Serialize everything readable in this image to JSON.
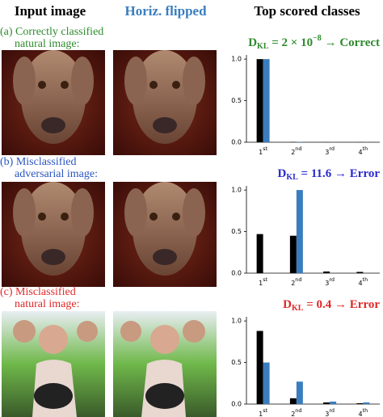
{
  "header": {
    "input": "Input image",
    "flipped": "Horiz. flipped",
    "classes": "Top scored classes"
  },
  "rows": [
    {
      "label": [
        "(a) Correctly classified",
        "natural image:"
      ],
      "color": "#2e8b2e"
    },
    {
      "label": [
        "(b) Misclassified",
        "adversarial image:"
      ],
      "color": "#2a55c0"
    },
    {
      "label": [
        "(c) Misclassified",
        "natural image:"
      ],
      "color": "#e02828"
    }
  ],
  "chart_data": [
    {
      "type": "bar",
      "title": {
        "symbol": "D",
        "subscript": "KL",
        "equals": " = 2 × 10",
        "exponent": "−8",
        "verdict": " → Correct"
      },
      "title_color": "#2e8b2e",
      "categories": [
        "1",
        "2",
        "3",
        "4"
      ],
      "category_suffixes": [
        "st",
        "nd",
        "rd",
        "th"
      ],
      "series": [
        {
          "color": "#000000",
          "values": [
            1.0,
            0.003,
            0.001,
            0.001
          ]
        },
        {
          "color": "#3a7dbf",
          "values": [
            1.0,
            0.003,
            0.001,
            0.001
          ]
        }
      ],
      "ylim": [
        0,
        1.05
      ],
      "yticks": [
        {
          "value": 0,
          "label": "0.0"
        },
        0.5,
        {
          "value": 1,
          "label": "1.0"
        }
      ]
    },
    {
      "type": "bar",
      "title": {
        "symbol": "D",
        "subscript": "KL",
        "equals": " = 11.6",
        "verdict": " → Error"
      },
      "title_color": "#2a2ad0",
      "categories": [
        "1",
        "2",
        "3",
        "4"
      ],
      "category_suffixes": [
        "st",
        "nd",
        "rd",
        "th"
      ],
      "series": [
        {
          "color": "#000000",
          "values": [
            0.47,
            0.45,
            0.02,
            0.015
          ]
        },
        {
          "color": "#3a7dbf",
          "values": [
            0.001,
            1.0,
            0.001,
            0.001
          ]
        }
      ],
      "ylim": [
        0,
        1.05
      ],
      "yticks": [
        {
          "value": 0,
          "label": "0.0"
        },
        0.5,
        {
          "value": 1,
          "label": "1.0"
        }
      ]
    },
    {
      "type": "bar",
      "title": {
        "symbol": "D",
        "subscript": "KL",
        "equals": " = 0.4",
        "verdict": " → Error"
      },
      "title_color": "#e02828",
      "categories": [
        "1",
        "2",
        "3",
        "4"
      ],
      "category_suffixes": [
        "st",
        "nd",
        "rd",
        "th"
      ],
      "series": [
        {
          "color": "#000000",
          "values": [
            0.88,
            0.07,
            0.02,
            0.01
          ]
        },
        {
          "color": "#3a7dbf",
          "values": [
            0.5,
            0.27,
            0.03,
            0.02
          ]
        }
      ],
      "ylim": [
        0,
        1.05
      ],
      "yticks": [
        {
          "value": 0,
          "label": "0.0"
        },
        0.5,
        {
          "value": 1,
          "label": "1.0"
        }
      ]
    }
  ]
}
